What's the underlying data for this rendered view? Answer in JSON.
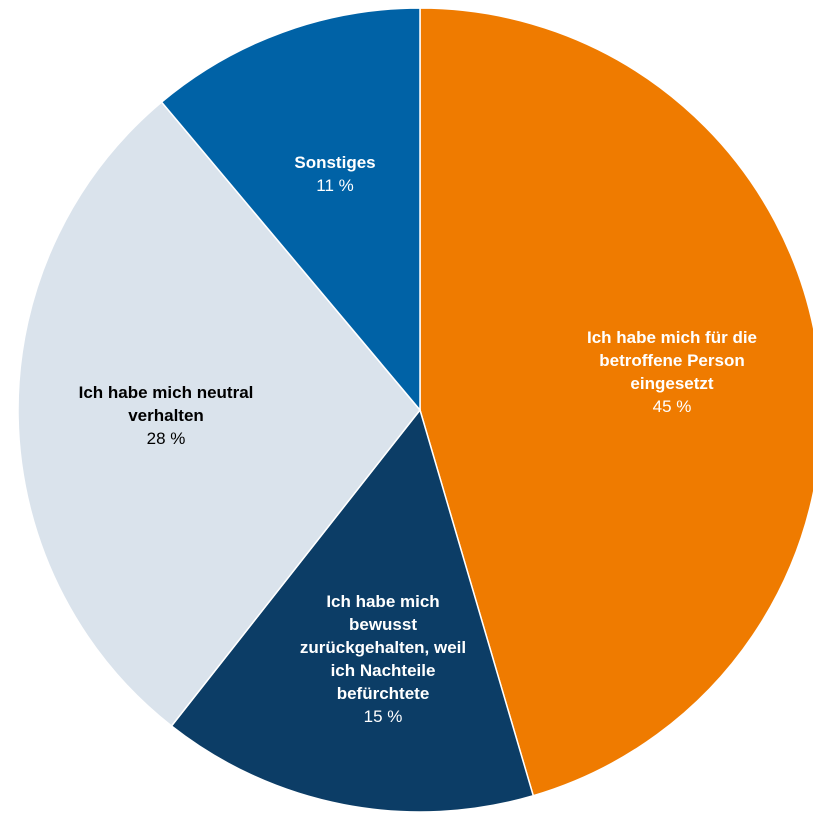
{
  "chart_data": {
    "type": "pie",
    "start_angle_deg": 0,
    "direction": "clockwise",
    "slices": [
      {
        "label_lines": [
          "Ich habe mich für die",
          "betroffene Person",
          "eingesetzt"
        ],
        "value": 45,
        "value_label": "45 %",
        "color": "#EF7B00",
        "text_color": "#ffffff"
      },
      {
        "label_lines": [
          "Ich habe mich",
          "bewusst",
          "zurückgehalten, weil",
          "ich Nachteile",
          "befürchtete"
        ],
        "value": 15,
        "value_label": "15 %",
        "color": "#0C3D66",
        "text_color": "#ffffff"
      },
      {
        "label_lines": [
          "Ich habe mich neutral",
          "verhalten"
        ],
        "value": 28,
        "value_label": "28 %",
        "color": "#DAE3EC",
        "text_color": "#000000"
      },
      {
        "label_lines": [
          "Sonstiges"
        ],
        "value": 11,
        "value_label": "11 %",
        "color": "#0062A6",
        "text_color": "#ffffff"
      }
    ]
  }
}
